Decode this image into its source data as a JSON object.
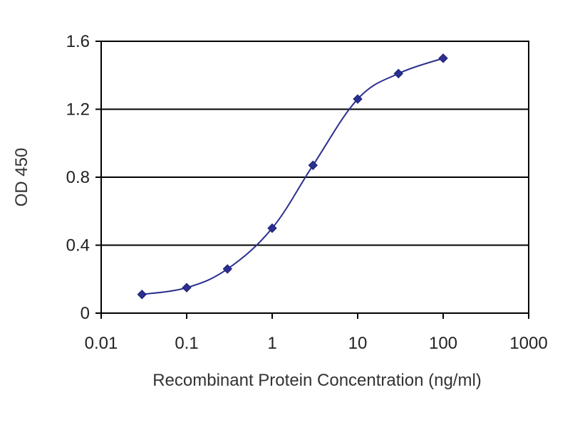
{
  "chart_data": {
    "type": "line",
    "xlabel": "Recombinant Protein Concentration (ng/ml)",
    "ylabel": "OD 450",
    "xscale": "log",
    "xlim": [
      0.01,
      1000
    ],
    "ylim": [
      0,
      1.6
    ],
    "x_ticks": [
      "0.01",
      "0.1",
      "1",
      "10",
      "100",
      "1000"
    ],
    "y_ticks": [
      "0",
      "0.4",
      "0.8",
      "1.2",
      "1.6"
    ],
    "grid": "horizontal",
    "colors": {
      "series": "#2b2f8f",
      "grid": "#000000",
      "axis": "#000000"
    },
    "series": [
      {
        "x": [
          0.03,
          0.1,
          0.3,
          1,
          3,
          10,
          30,
          100
        ],
        "values": [
          0.11,
          0.15,
          0.26,
          0.5,
          0.87,
          1.26,
          1.41,
          1.5
        ]
      }
    ]
  }
}
